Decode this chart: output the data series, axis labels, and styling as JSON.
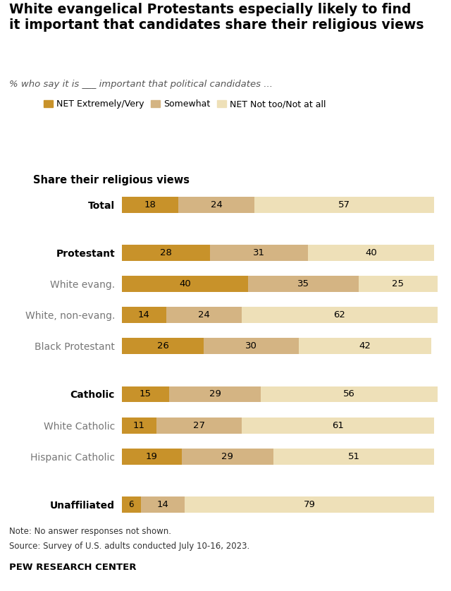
{
  "title": "White evangelical Protestants especially likely to find\nit important that candidates share their religious views",
  "subtitle": "% who say it is ___ important that political candidates ...",
  "section_label": "Share their religious views",
  "categories": [
    "Total",
    "Protestant",
    "White evang.",
    "White, non-evang.",
    "Black Protestant",
    "Catholic",
    "White Catholic",
    "Hispanic Catholic",
    "Unaffiliated"
  ],
  "bold_labels": [
    "Total",
    "Protestant",
    "Catholic",
    "Unaffiliated"
  ],
  "values": [
    [
      18,
      24,
      57
    ],
    [
      28,
      31,
      40
    ],
    [
      40,
      35,
      25
    ],
    [
      14,
      24,
      62
    ],
    [
      26,
      30,
      42
    ],
    [
      15,
      29,
      56
    ],
    [
      11,
      27,
      61
    ],
    [
      19,
      29,
      51
    ],
    [
      6,
      14,
      79
    ]
  ],
  "colors": [
    "#C8922A",
    "#D4B483",
    "#EEE0B8"
  ],
  "legend_labels": [
    "NET Extremely/Very",
    "Somewhat",
    "NET Not too/Not at all"
  ],
  "note1": "Note: No answer responses not shown.",
  "note2": "Source: Survey of U.S. adults conducted July 10-16, 2023.",
  "source": "PEW RESEARCH CENTER",
  "background_color": "#FFFFFF",
  "bar_height": 0.52,
  "xlim": [
    0,
    100
  ],
  "groups": [
    [
      "Total"
    ],
    [
      "Protestant",
      "White evang.",
      "White, non-evang.",
      "Black Protestant"
    ],
    [
      "Catholic",
      "White Catholic",
      "Hispanic Catholic"
    ],
    [
      "Unaffiliated"
    ]
  ]
}
